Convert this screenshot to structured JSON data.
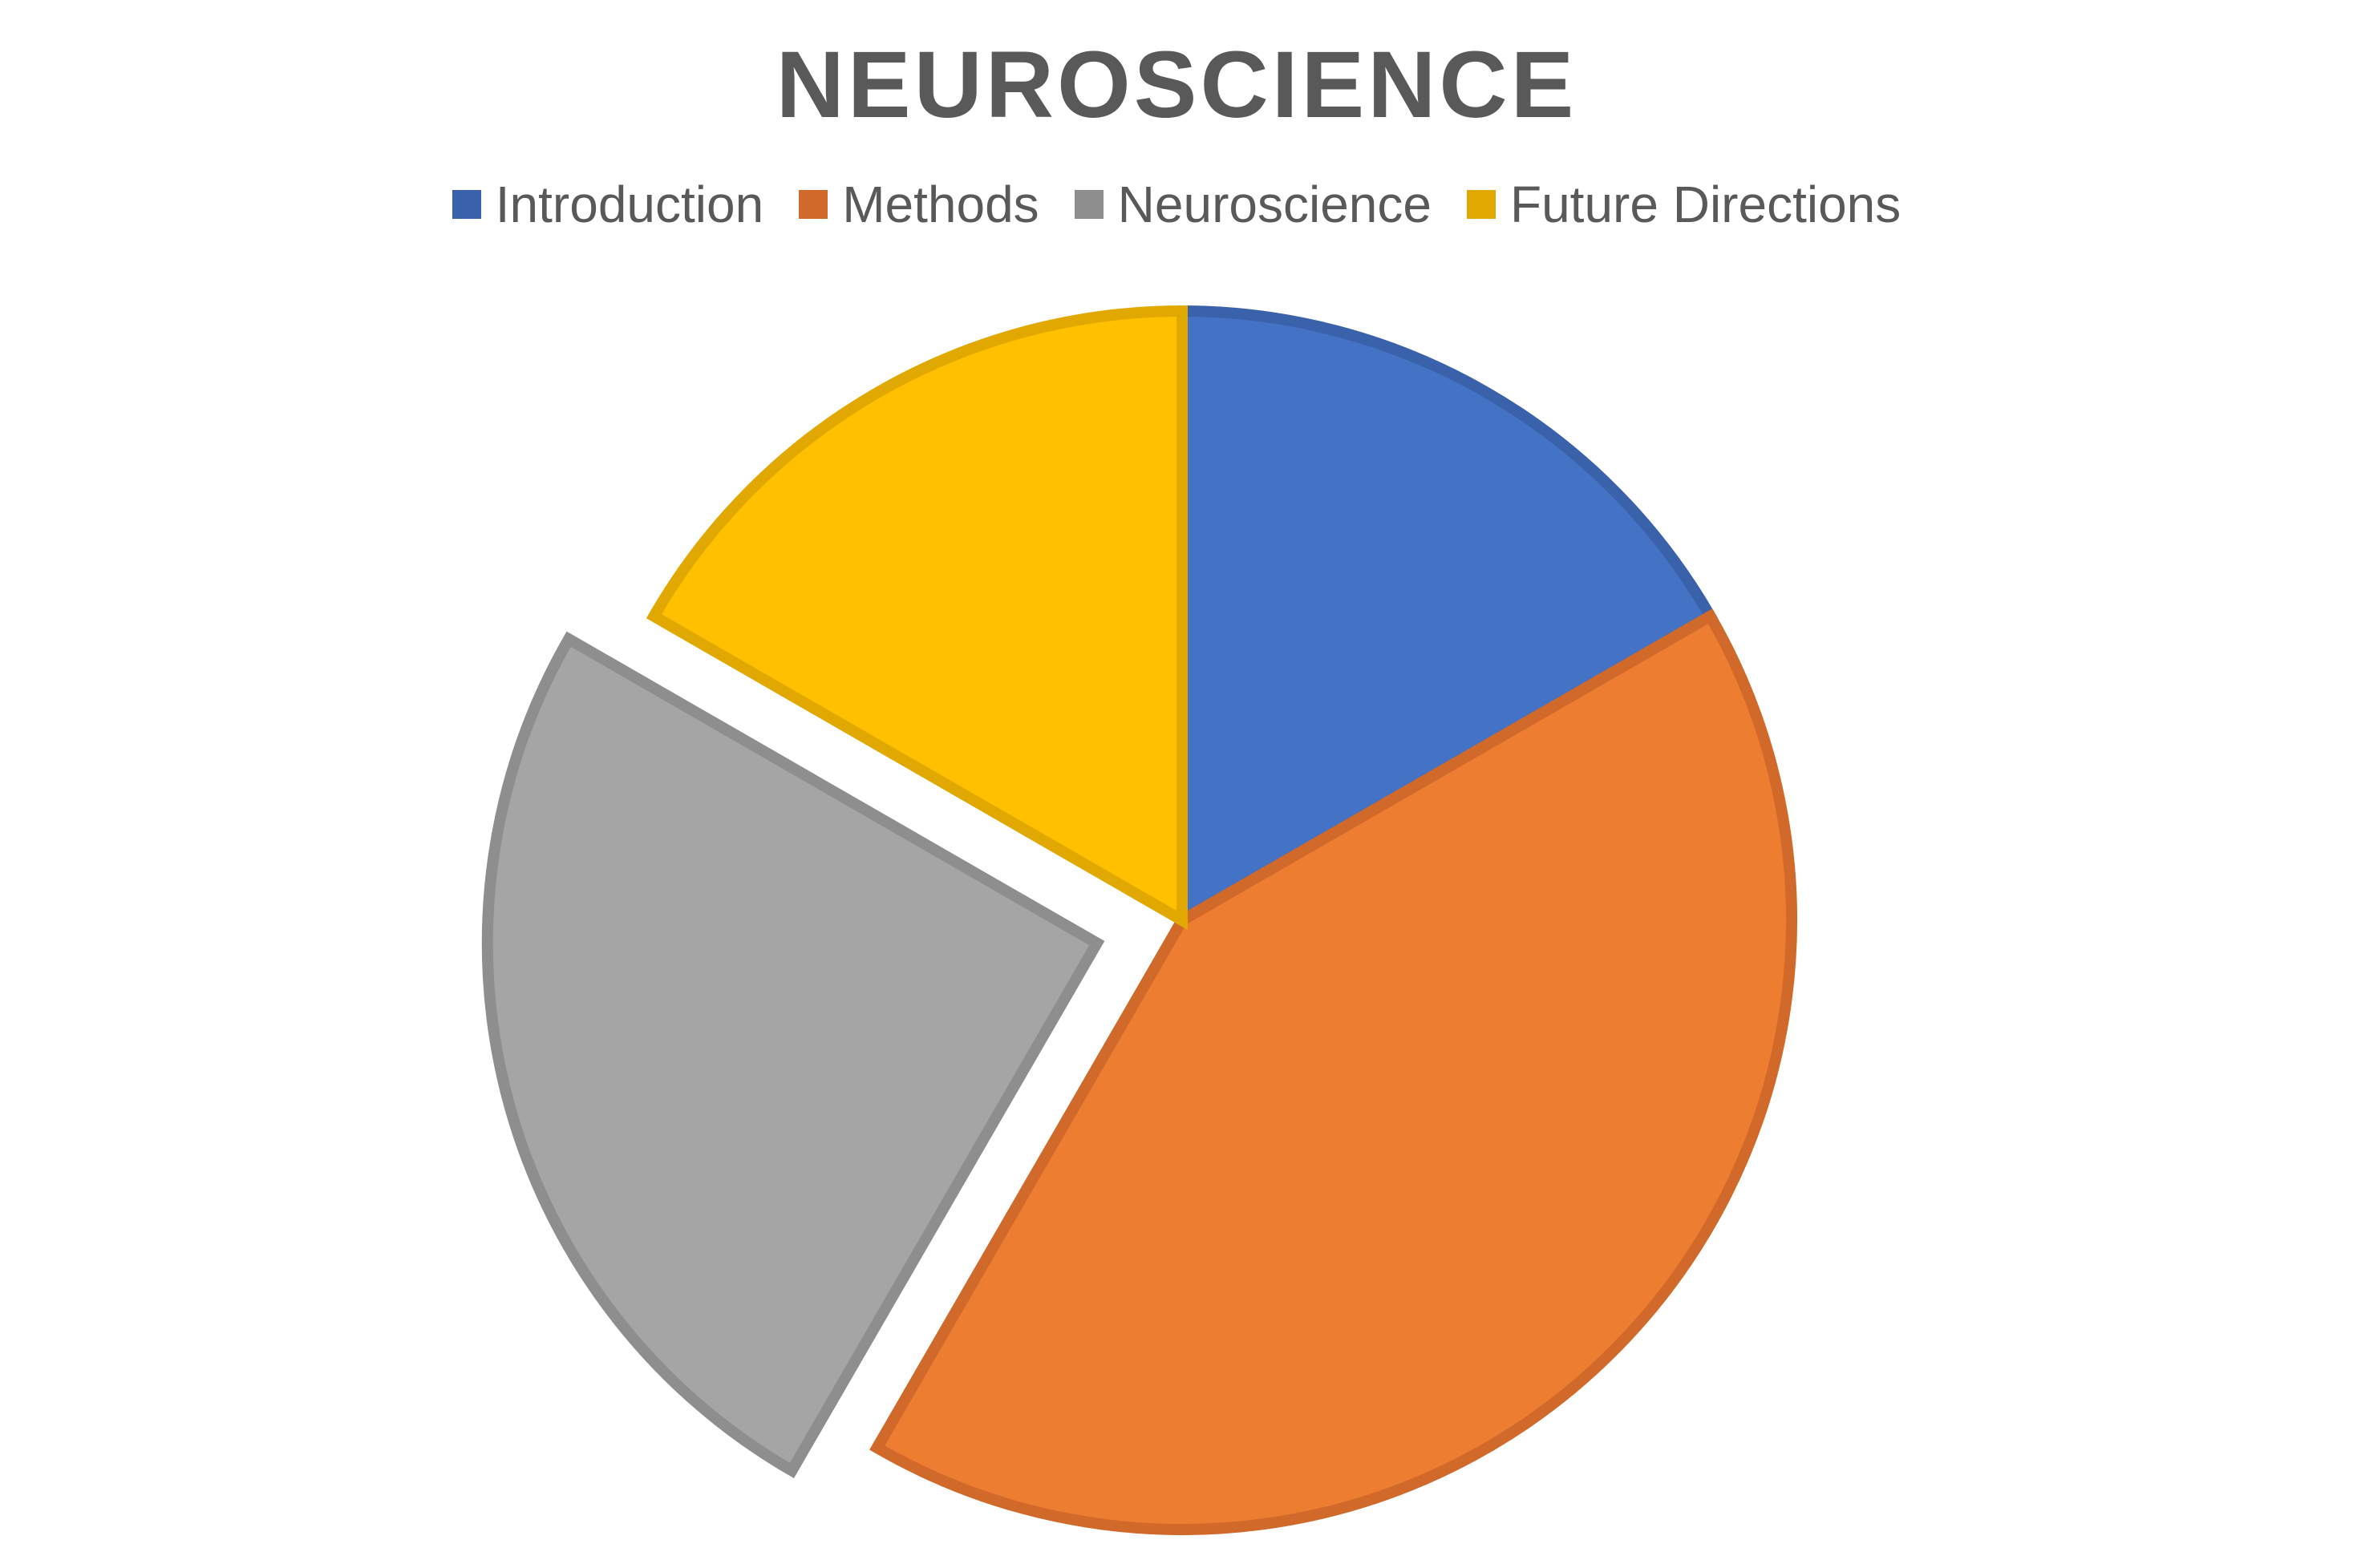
{
  "chart_data": {
    "type": "pie",
    "title": "NEUROSCIENCE",
    "legend_position": "top",
    "start_angle_deg": 0,
    "direction": "clockwise",
    "slices": [
      {
        "label": "Introduction",
        "value": 16.7,
        "color": "#4472C4",
        "border": "#3A62AB",
        "exploded": false
      },
      {
        "label": "Methods",
        "value": 41.7,
        "color": "#ED7D31",
        "border": "#D0692A",
        "exploded": false
      },
      {
        "label": "Neuroscience",
        "value": 25.0,
        "color": "#A5A5A5",
        "border": "#8E8E8E",
        "exploded": true
      },
      {
        "label": "Future Directions",
        "value": 16.7,
        "color": "#FFC000",
        "border": "#E0A800",
        "exploded": false
      }
    ]
  }
}
